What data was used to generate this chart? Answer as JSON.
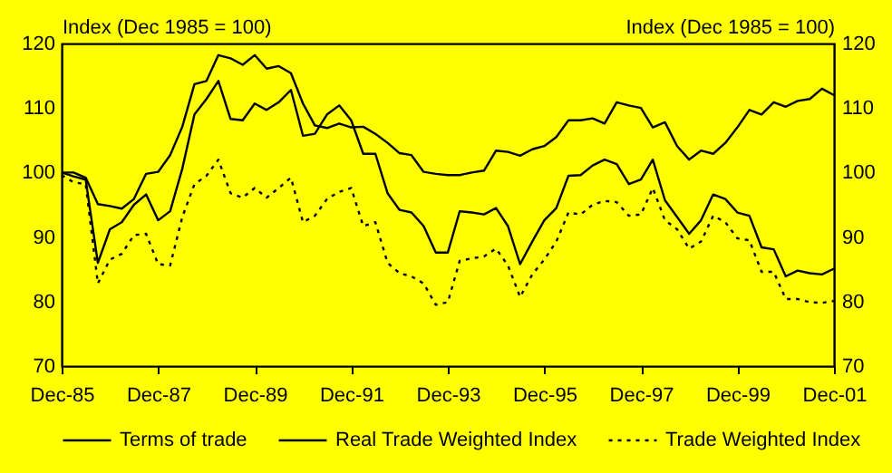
{
  "chart_data": {
    "type": "line",
    "ylabel": "Index (Dec 1985 = 100)",
    "y2label": "Index (Dec 1985 = 100)",
    "x": [
      "1985-12",
      "1986-03",
      "1986-06",
      "1986-09",
      "1986-12",
      "1987-03",
      "1987-06",
      "1987-09",
      "1987-12",
      "1988-03",
      "1988-06",
      "1988-09",
      "1988-12",
      "1989-03",
      "1989-06",
      "1989-09",
      "1989-12",
      "1990-03",
      "1990-06",
      "1990-09",
      "1990-12",
      "1991-03",
      "1991-06",
      "1991-09",
      "1991-12",
      "1992-03",
      "1992-06",
      "1992-09",
      "1992-12",
      "1993-03",
      "1993-06",
      "1993-09",
      "1993-12",
      "1994-03",
      "1994-06",
      "1994-09",
      "1994-12",
      "1995-03",
      "1995-06",
      "1995-09",
      "1995-12",
      "1996-03",
      "1996-06",
      "1996-09",
      "1996-12",
      "1997-03",
      "1997-06",
      "1997-09",
      "1997-12",
      "1998-03",
      "1998-06",
      "1998-09",
      "1998-12",
      "1999-03",
      "1999-06",
      "1999-09",
      "1999-12",
      "2000-03",
      "2000-06",
      "2000-09",
      "2000-12",
      "2001-03",
      "2001-06",
      "2001-09",
      "2001-12"
    ],
    "series": [
      {
        "name": "Terms of trade",
        "color": "#000000",
        "line_style": "solid",
        "values": [
          100,
          100,
          99.2,
          95.1,
          94.8,
          94.4,
          95.9,
          99.8,
          100.1,
          102.7,
          107.1,
          113.7,
          114.2,
          118.2,
          117.7,
          116.7,
          118.2,
          116.1,
          116.5,
          115.4,
          110.7,
          107.3,
          106.9,
          107.6,
          107,
          107.1,
          106,
          104.6,
          103,
          102.7,
          100.1,
          99.8,
          99.6,
          99.6,
          100,
          100.3,
          103.4,
          103.2,
          102.6,
          103.6,
          104.1,
          105.5,
          108.1,
          108.1,
          108.4,
          107.6,
          110.9,
          110.4,
          110,
          107,
          107.8,
          104.1,
          102,
          103.4,
          102.9,
          104.6,
          107,
          109.7,
          109,
          110.9,
          110.2,
          111.1,
          111.4,
          113,
          112
        ]
      },
      {
        "name": "Real Trade Weighted Index",
        "color": "#000000",
        "line_style": "solid",
        "values": [
          100,
          99.4,
          98.9,
          86,
          91.2,
          92.3,
          95,
          96.6,
          92.6,
          94,
          100.6,
          109,
          111.4,
          114.2,
          108.3,
          108.1,
          110.7,
          109.7,
          110.9,
          112.8,
          105.7,
          106,
          109,
          110.4,
          108.1,
          102.9,
          102.9,
          96.8,
          94.2,
          93.8,
          91.7,
          87.6,
          87.6,
          94,
          93.8,
          93.5,
          94.5,
          91.7,
          85.8,
          89.3,
          92.6,
          94.5,
          99.5,
          99.6,
          101.1,
          102,
          101.3,
          98.2,
          98.9,
          102,
          95.7,
          93.1,
          90.5,
          92.6,
          96.6,
          95.9,
          93.8,
          93.3,
          88.4,
          88.1,
          83.9,
          84.8,
          84.4,
          84.2,
          85.1
        ]
      },
      {
        "name": "Trade Weighted Index",
        "color": "#000000",
        "line_style": "dotted",
        "values": [
          99.6,
          98.5,
          98.2,
          82.8,
          86.5,
          87.4,
          90.3,
          90.5,
          85.8,
          85.6,
          93.1,
          98.2,
          99.5,
          102,
          96.8,
          96.1,
          97.6,
          96.1,
          97.6,
          99.2,
          92.3,
          93.3,
          95.9,
          97,
          97.6,
          91.7,
          92.3,
          86,
          84.4,
          83.9,
          82.8,
          79.5,
          79.9,
          86.3,
          86.7,
          87,
          88.2,
          85.6,
          80.7,
          84.2,
          86.5,
          89.3,
          93.8,
          93.5,
          95,
          95.6,
          95.4,
          93.3,
          93.5,
          97.6,
          92.6,
          91.2,
          88.2,
          89.3,
          93.3,
          92.3,
          89.8,
          89.5,
          84.6,
          84.6,
          80.4,
          80.4,
          79.9,
          79.8,
          80.1
        ]
      }
    ],
    "xlim": [
      "1985-12",
      "2001-12"
    ],
    "xticks": [
      {
        "value": "1985-12",
        "label": "Dec-85"
      },
      {
        "value": "1987-12",
        "label": "Dec-87"
      },
      {
        "value": "1989-12",
        "label": "Dec-89"
      },
      {
        "value": "1991-12",
        "label": "Dec-91"
      },
      {
        "value": "1993-12",
        "label": "Dec-93"
      },
      {
        "value": "1995-12",
        "label": "Dec-95"
      },
      {
        "value": "1997-12",
        "label": "Dec-97"
      },
      {
        "value": "1999-12",
        "label": "Dec-99"
      },
      {
        "value": "2001-12",
        "label": "Dec-01"
      }
    ],
    "ylim": [
      70,
      120
    ],
    "yticks": [
      70,
      80,
      90,
      100,
      110,
      120
    ],
    "y2lim": [
      70,
      120
    ],
    "y2ticks": [
      70,
      80,
      90,
      100,
      110,
      120
    ],
    "grid": false,
    "legend": "bottom"
  }
}
